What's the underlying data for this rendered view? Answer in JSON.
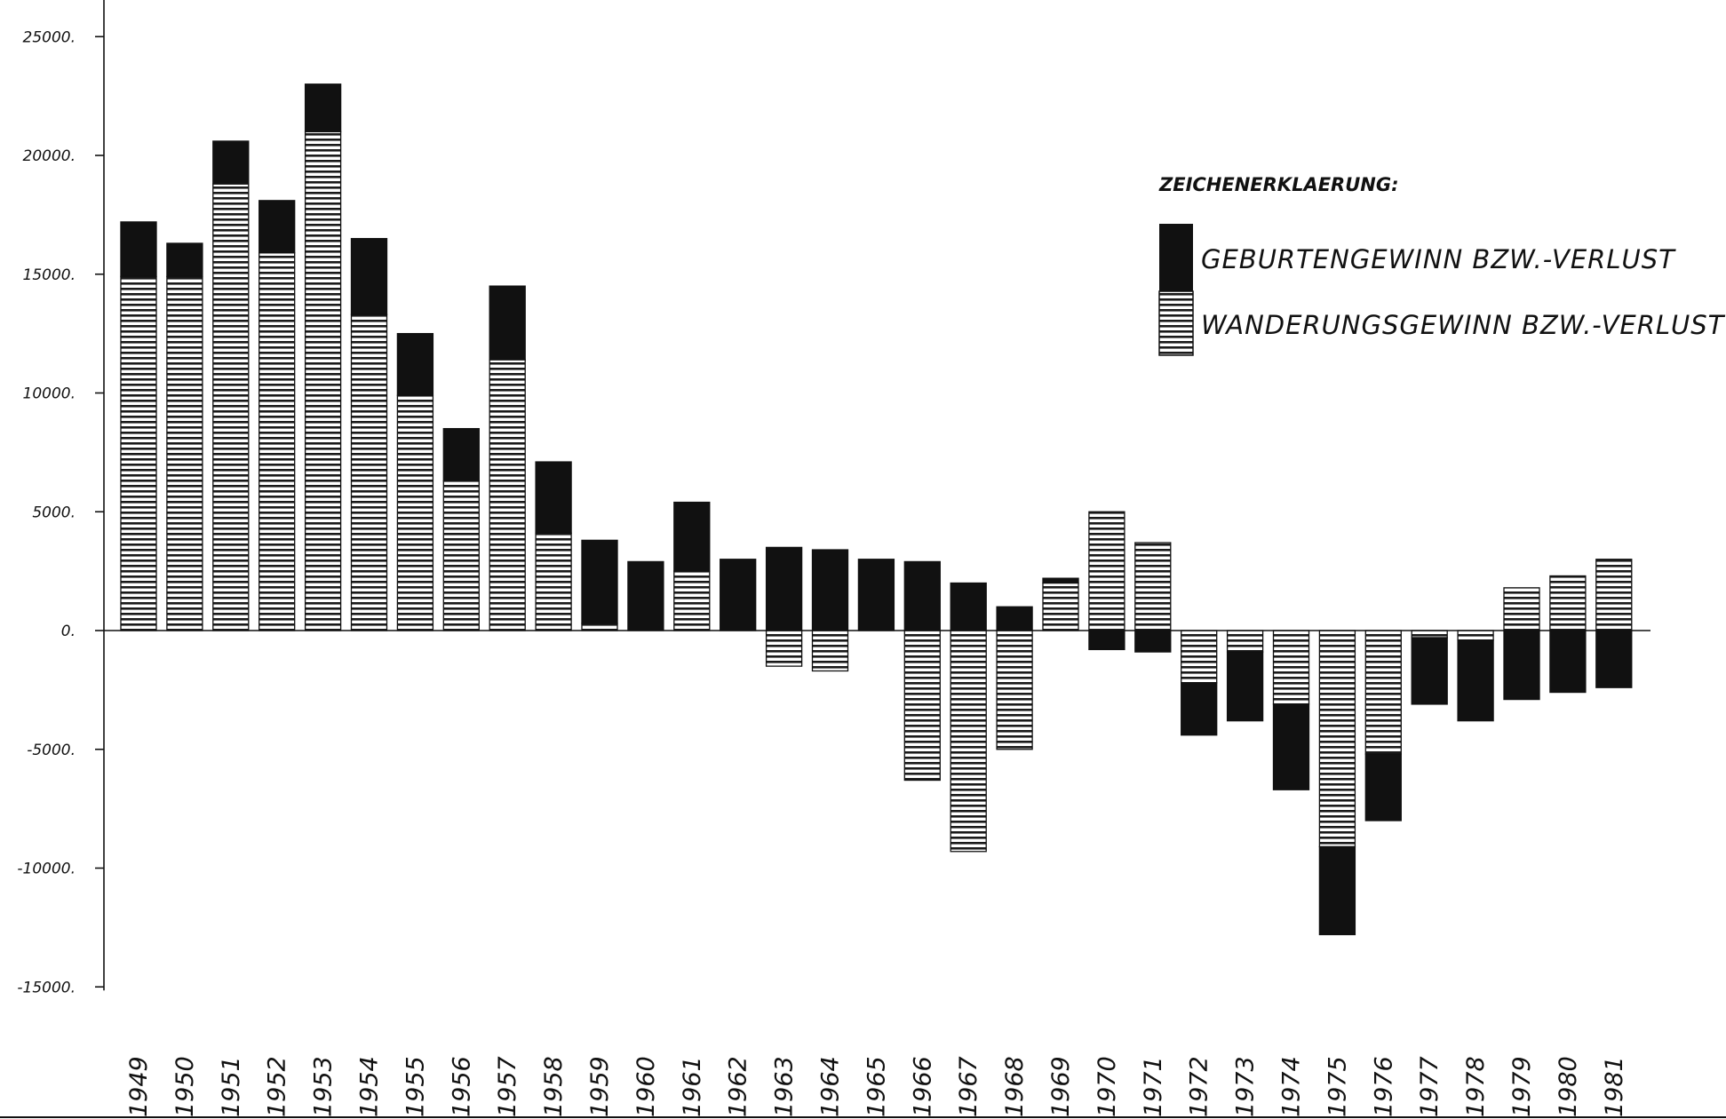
{
  "chart_data": {
    "type": "bar",
    "stacked": true,
    "legend": {
      "title": "ZEICHENERKLAERUNG:",
      "placement": "top-right",
      "entries": [
        {
          "label": "GEBURTENGEWINN BZW.-VERLUST",
          "fill": "solid-black"
        },
        {
          "label": "WANDERUNGSGEWINN BZW.-VERLUST",
          "fill": "horizontal-hatch"
        }
      ]
    },
    "ylim": [
      -15000,
      25000
    ],
    "yticks": [
      {
        "value": 25000,
        "label": "25000."
      },
      {
        "value": 20000,
        "label": "20000."
      },
      {
        "value": 15000,
        "label": "15000."
      },
      {
        "value": 10000,
        "label": "10000."
      },
      {
        "value": 5000,
        "label": "5000."
      },
      {
        "value": 0,
        "label": "0."
      },
      {
        "value": -5000,
        "label": "-5000."
      },
      {
        "value": -10000,
        "label": "-10000."
      },
      {
        "value": -15000,
        "label": "-15000."
      }
    ],
    "grid": false,
    "categories": [
      "1949",
      "1950",
      "1951",
      "1952",
      "1953",
      "1954",
      "1955",
      "1956",
      "1957",
      "1958",
      "1959",
      "1960",
      "1961",
      "1962",
      "1963",
      "1964",
      "1965",
      "1966",
      "1967",
      "1968",
      "1969",
      "1970",
      "1971",
      "1972",
      "1973",
      "1974",
      "1975",
      "1976",
      "1977",
      "1978",
      "1979",
      "1980",
      "1981"
    ],
    "series": [
      {
        "name": "GEBURTENGEWINN BZW.-VERLUST",
        "color": "#111111",
        "values": [
          2300,
          1400,
          1800,
          2200,
          2000,
          3200,
          2600,
          2200,
          3100,
          3000,
          3500,
          2900,
          2900,
          3000,
          3500,
          3400,
          3000,
          2900,
          2000,
          1000,
          200,
          -800,
          -900,
          -2200,
          -2900,
          -3600,
          -3700,
          -2800,
          -2800,
          -3400,
          -2900,
          -2600,
          -2400
        ]
      },
      {
        "name": "WANDERUNGSGEWINN BZW.-VERLUST",
        "color": "#111111",
        "values": [
          14900,
          14900,
          18800,
          15900,
          21000,
          13300,
          9900,
          6300,
          11400,
          4100,
          300,
          0,
          2500,
          0,
          -1500,
          -1700,
          0,
          -6300,
          -9300,
          -5000,
          2000,
          5000,
          3700,
          -2200,
          -900,
          -3100,
          -9100,
          -5200,
          -300,
          -400,
          1800,
          2300,
          3000
        ]
      }
    ]
  }
}
